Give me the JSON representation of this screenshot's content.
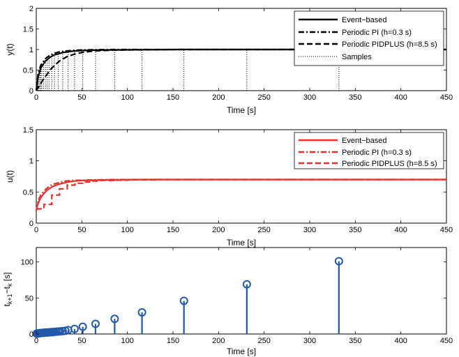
{
  "chart_data": [
    {
      "type": "line",
      "title": "",
      "xlabel": "Time [s]",
      "ylabel": "y(t)",
      "xlim": [
        0,
        450
      ],
      "ylim": [
        0,
        2
      ],
      "xticks": [
        0,
        50,
        100,
        150,
        200,
        250,
        300,
        350,
        400,
        450
      ],
      "yticks": [
        0,
        0.5,
        1,
        1.5,
        2
      ],
      "ytick_labels": [
        "0",
        "0.5",
        "1",
        "1.5",
        "2"
      ],
      "grid": false,
      "legend_position": "top-right",
      "series": [
        {
          "name": "Event−based",
          "color": "#000000",
          "style": "solid",
          "x": [
            0,
            2,
            5,
            10,
            15,
            20,
            25,
            30,
            40,
            50,
            65,
            85,
            115,
            160,
            230,
            330,
            450
          ],
          "y": [
            0,
            0.33,
            0.55,
            0.72,
            0.81,
            0.87,
            0.9,
            0.93,
            0.96,
            0.975,
            0.985,
            0.99,
            0.995,
            1.0,
            1.0,
            1.0,
            1.0
          ]
        },
        {
          "name": "Periodic PI (h=0.3 s)",
          "color": "#000000",
          "style": "dashdot",
          "x": [
            0,
            2,
            5,
            10,
            15,
            20,
            25,
            30,
            40,
            50,
            65,
            85,
            115,
            160,
            230,
            330,
            450
          ],
          "y": [
            0,
            0.4,
            0.62,
            0.78,
            0.86,
            0.91,
            0.94,
            0.96,
            0.98,
            0.99,
            0.995,
            1.0,
            1.0,
            1.0,
            1.0,
            1.0,
            1.0
          ]
        },
        {
          "name": "Periodic PIDPLUS (h=8.5 s)",
          "color": "#000000",
          "style": "dashed",
          "x": [
            0,
            8.5,
            17,
            25.5,
            34,
            42.5,
            51,
            59.5,
            68,
            85,
            100,
            130,
            160,
            200,
            450
          ],
          "y": [
            0,
            0.3,
            0.55,
            0.72,
            0.83,
            0.89,
            0.93,
            0.955,
            0.97,
            0.985,
            0.99,
            0.995,
            1.0,
            1.0,
            1.0
          ]
        }
      ],
      "samples": {
        "name": "Samples",
        "times": [
          1,
          2,
          3,
          4,
          5,
          6,
          8,
          10,
          12,
          14,
          17,
          20,
          24,
          29,
          35,
          42,
          51,
          65,
          86,
          116,
          162,
          231,
          332
        ],
        "y": [
          0.25,
          0.33,
          0.42,
          0.49,
          0.55,
          0.6,
          0.66,
          0.72,
          0.76,
          0.79,
          0.83,
          0.87,
          0.9,
          0.92,
          0.95,
          0.96,
          0.975,
          0.985,
          0.99,
          0.995,
          1.0,
          1.0,
          1.0
        ]
      }
    },
    {
      "type": "line",
      "title": "",
      "xlabel": "Time [s]",
      "ylabel": "u(t)",
      "xlim": [
        0,
        450
      ],
      "ylim": [
        0,
        1.5
      ],
      "xticks": [
        0,
        50,
        100,
        150,
        200,
        250,
        300,
        350,
        400,
        450
      ],
      "yticks": [
        0,
        0.5,
        1,
        1.5
      ],
      "ytick_labels": [
        "0",
        "0.5",
        "1",
        "1.5"
      ],
      "grid": false,
      "legend_position": "top-right",
      "series": [
        {
          "name": "Event−based",
          "color": "#e8312f",
          "style": "solid",
          "x": [
            0,
            1,
            2,
            3,
            4,
            5,
            6,
            8,
            10,
            12,
            14,
            17,
            20,
            24,
            29,
            35,
            42,
            51,
            65,
            86,
            116,
            162,
            231,
            332,
            450
          ],
          "y": [
            0.2,
            0.27,
            0.31,
            0.35,
            0.38,
            0.41,
            0.43,
            0.47,
            0.5,
            0.53,
            0.55,
            0.58,
            0.6,
            0.62,
            0.64,
            0.66,
            0.675,
            0.685,
            0.69,
            0.695,
            0.7,
            0.7,
            0.7,
            0.7,
            0.7
          ]
        },
        {
          "name": "Periodic PI (h=0.3 s)",
          "color": "#e8312f",
          "style": "dashdot",
          "x": [
            0,
            2,
            5,
            10,
            15,
            20,
            25,
            30,
            40,
            50,
            65,
            85,
            115,
            160,
            450
          ],
          "y": [
            0.2,
            0.36,
            0.45,
            0.54,
            0.6,
            0.63,
            0.65,
            0.67,
            0.685,
            0.69,
            0.695,
            0.7,
            0.7,
            0.7,
            0.7
          ]
        },
        {
          "name": "Periodic PIDPLUS (h=8.5 s)",
          "color": "#e8312f",
          "style": "dashed",
          "x": [
            0,
            8.5,
            17,
            25.5,
            34,
            42.5,
            51,
            59.5,
            68,
            85,
            100,
            130,
            160,
            450
          ],
          "y": [
            0.23,
            0.3,
            0.45,
            0.55,
            0.61,
            0.64,
            0.66,
            0.675,
            0.685,
            0.69,
            0.695,
            0.7,
            0.7,
            0.7
          ],
          "stairs": true
        }
      ]
    },
    {
      "type": "stem",
      "title": "",
      "xlabel": "Time [s]",
      "ylabel_main": "t",
      "ylabel_sub1": "k+1",
      "ylabel_mid": "−t",
      "ylabel_sub2": "k",
      "ylabel_unit": " [s]",
      "xlim": [
        0,
        450
      ],
      "ylim": [
        0,
        120
      ],
      "xticks": [
        0,
        50,
        100,
        150,
        200,
        250,
        300,
        350,
        400,
        450
      ],
      "yticks": [
        0,
        50,
        100
      ],
      "ytick_labels": [
        "0",
        "50",
        "100"
      ],
      "grid": false,
      "color": "#2259a8",
      "x": [
        0.5,
        1,
        1.5,
        2,
        2.5,
        3,
        3.5,
        4,
        4.5,
        5,
        6,
        7,
        8,
        9,
        10,
        11,
        12,
        13,
        14,
        15,
        16,
        17,
        18,
        19,
        20,
        22,
        24,
        26,
        29,
        32,
        35,
        42,
        51,
        65,
        86,
        116,
        162,
        231,
        332
      ],
      "values": [
        0.5,
        0.6,
        0.7,
        0.8,
        0.9,
        1.0,
        1.1,
        1.2,
        1.3,
        1.4,
        1.5,
        1.6,
        1.7,
        1.8,
        1.9,
        2.0,
        2.1,
        2.2,
        2.3,
        2.4,
        2.5,
        2.6,
        2.7,
        2.8,
        3.0,
        3.2,
        3.4,
        3.6,
        4.0,
        4.5,
        5.5,
        7,
        10,
        14,
        21,
        30,
        46,
        69,
        101
      ]
    }
  ]
}
